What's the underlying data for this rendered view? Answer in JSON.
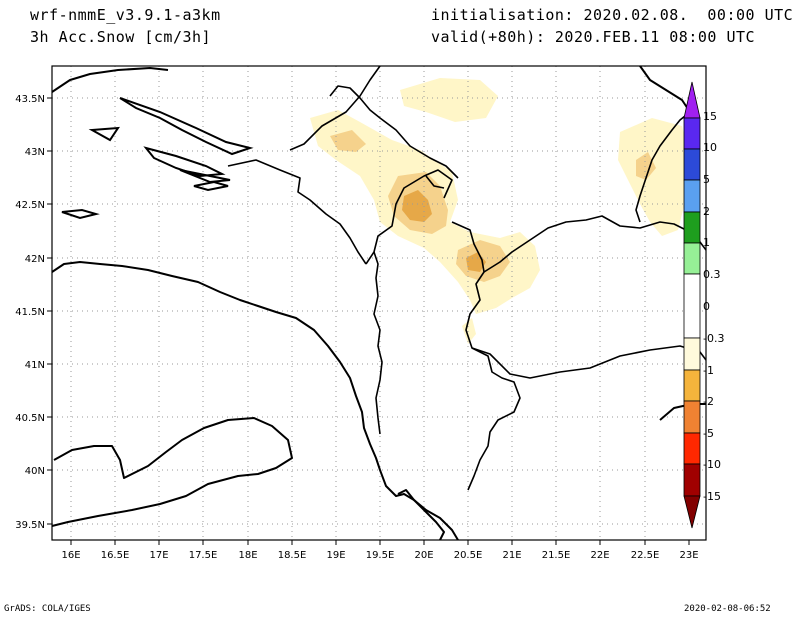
{
  "header": {
    "model": "wrf-nmmE_v3.9.1-a3km",
    "field": "3h Acc.Snow [cm/3h]",
    "init": "initialisation: 2020.02.08.  00:00 UTC",
    "valid": "valid(+80h): 2020.FEB.11 08:00 UTC"
  },
  "footer": {
    "left": "GrADS: COLA/IGES",
    "right": "2020-02-08-06:52"
  },
  "axes": {
    "lat_labels": [
      "43.5N",
      "43N",
      "42.5N",
      "42N",
      "41.5N",
      "41N",
      "40.5N",
      "40N",
      "39.5N"
    ],
    "lon_labels": [
      "16E",
      "16.5E",
      "17E",
      "17.5E",
      "18E",
      "18.5E",
      "19E",
      "19.5E",
      "20E",
      "20.5E",
      "21E",
      "21.5E",
      "22E",
      "22.5E",
      "23E"
    ]
  },
  "colorbar": {
    "labels": [
      "15",
      "10",
      "5",
      "2",
      "1",
      "0.3",
      "0",
      "-0.3",
      "-1",
      "-2",
      "-5",
      "-10",
      "-15"
    ],
    "colors": {
      "top_tip": "#a020f0",
      "b1": "#5a28f0",
      "b2": "#2c4ad8",
      "b3": "#5aa0f0",
      "b4": "#a0d2fa",
      "b5": "#1e9e1e",
      "b6": "#50c850",
      "b7": "#96f096",
      "neutral": "#ffffff",
      "n1": "#fffadc",
      "n2": "#ffe1a0",
      "n3": "#f5b43c",
      "n4": "#f08232",
      "n5": "#ff2800",
      "n6": "#c80000",
      "n7": "#a00000",
      "bottom_tip": "#820000"
    }
  },
  "snow_colors": {
    "light": "#fff6c8",
    "medium": "#f5d28c",
    "heavy": "#e6a848"
  }
}
